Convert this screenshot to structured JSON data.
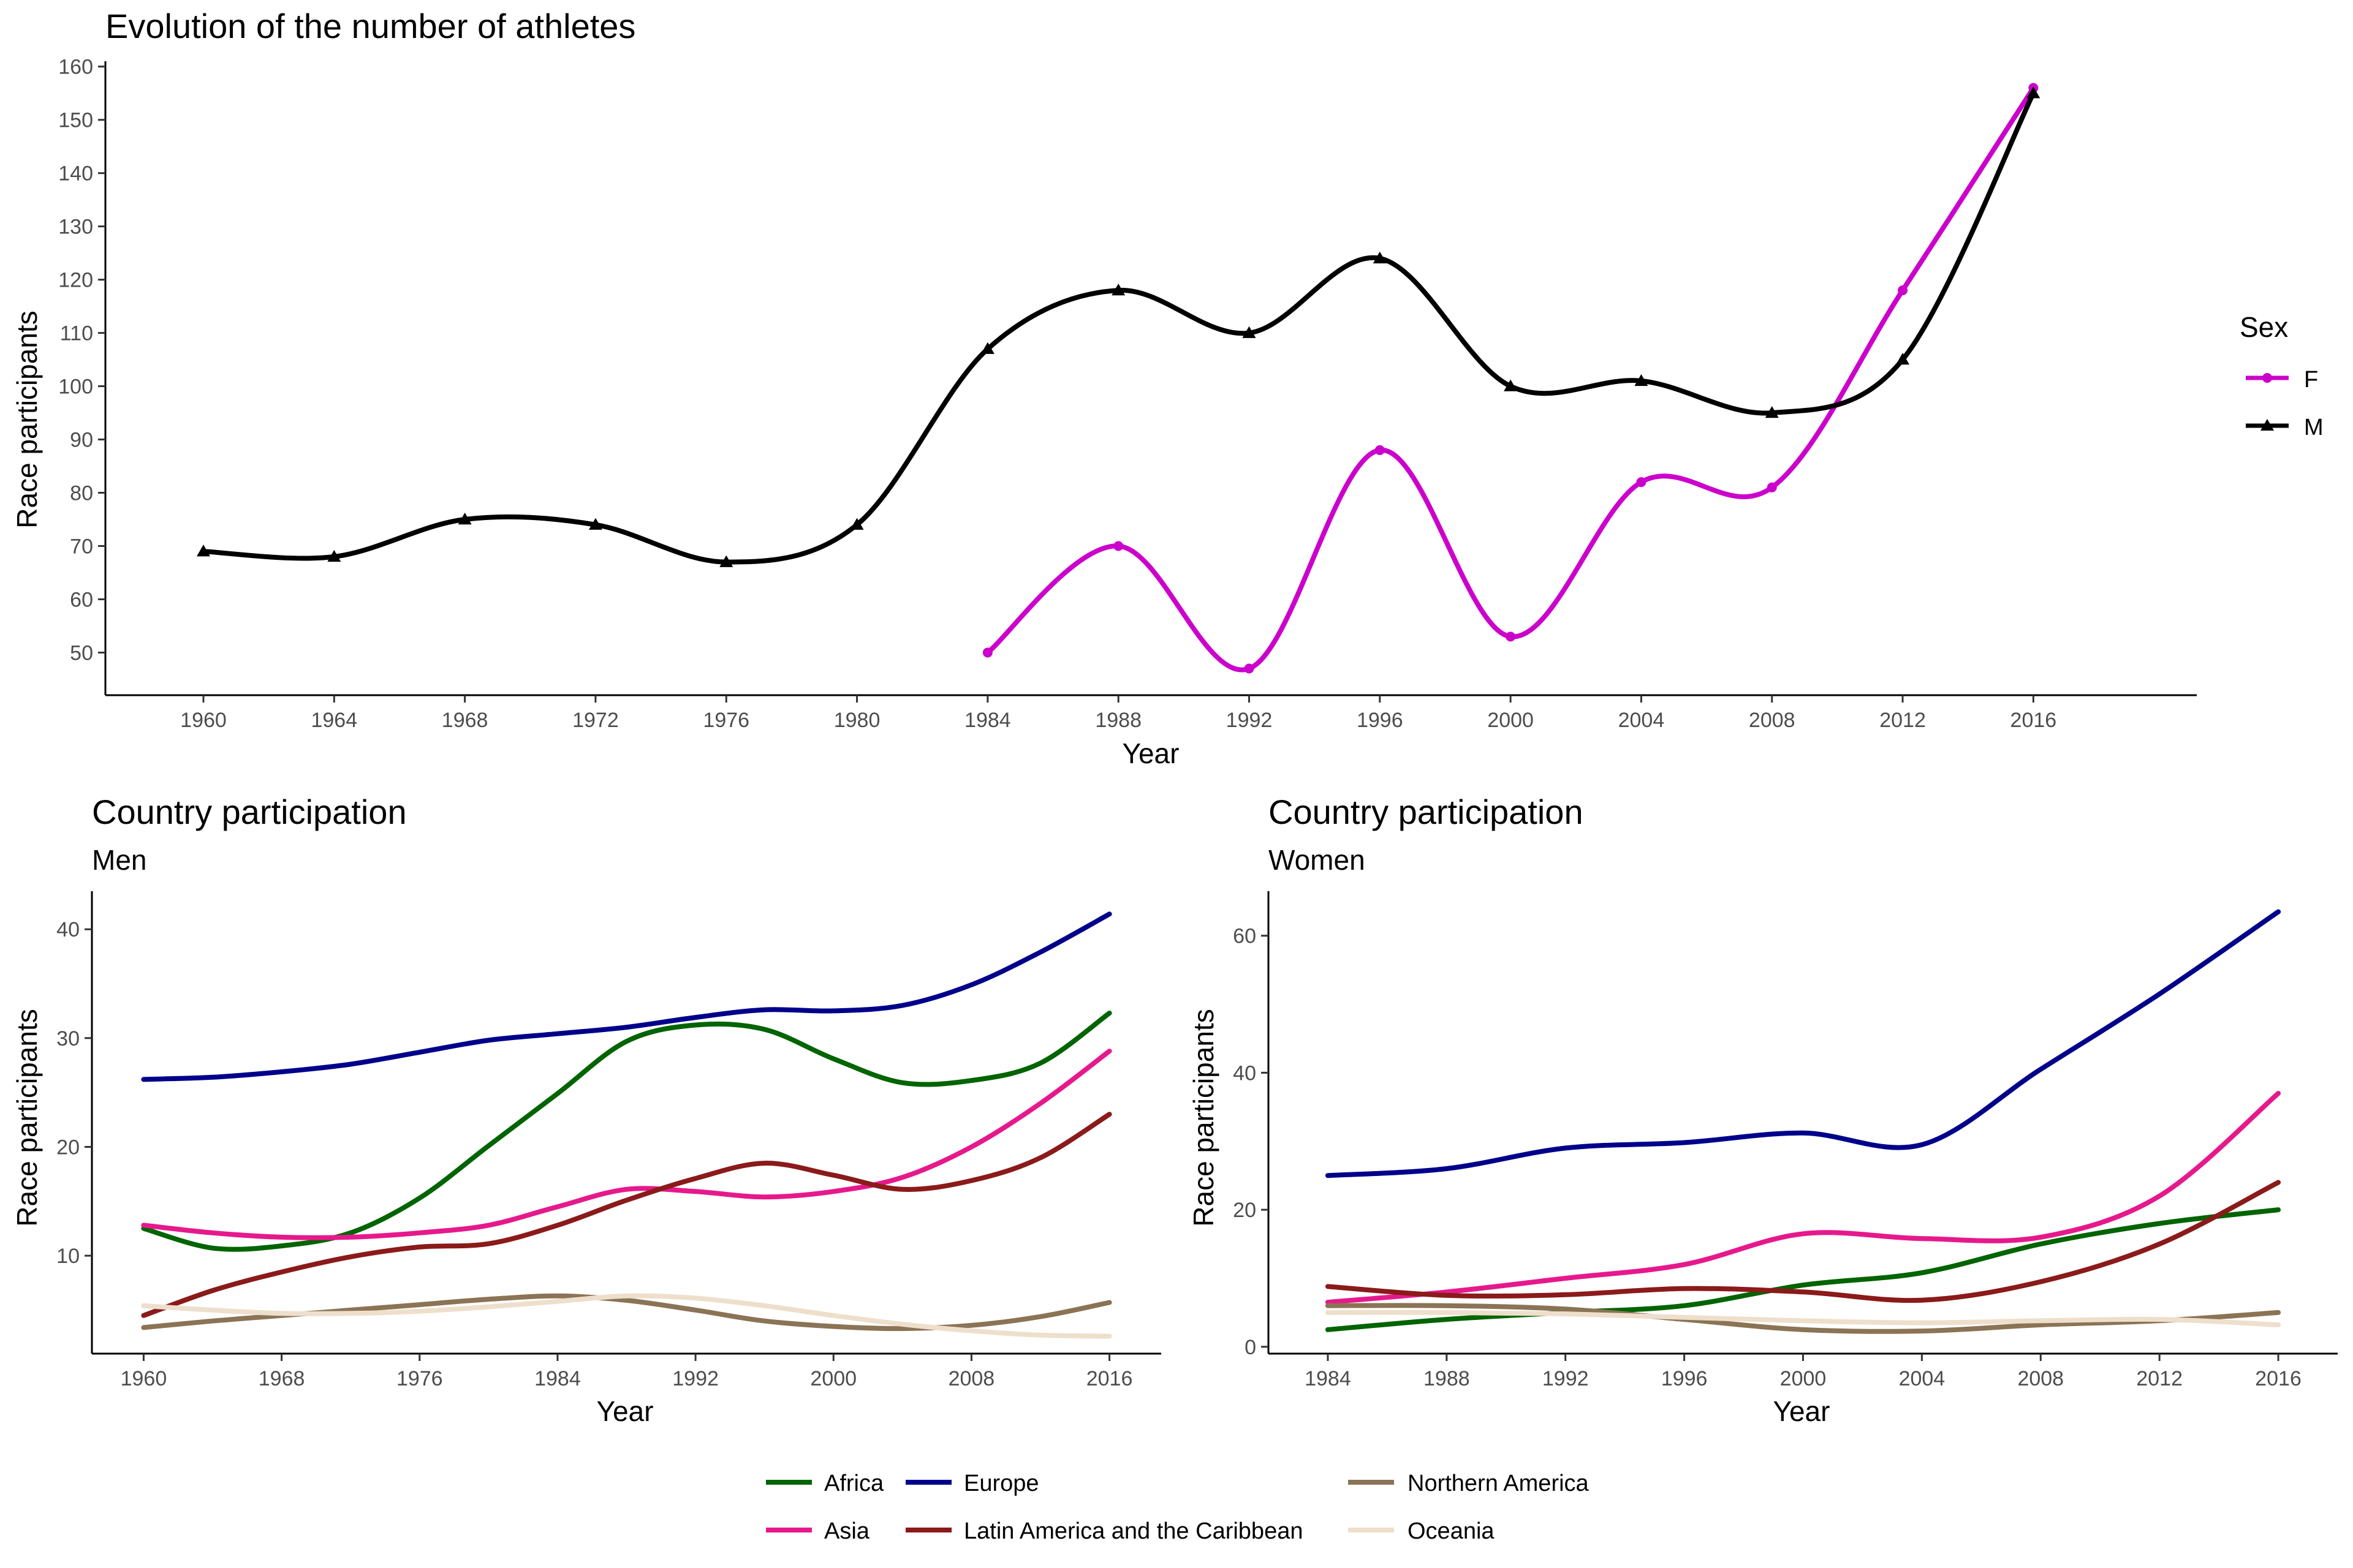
{
  "colors": {
    "F": "#CC00CC",
    "M": "#000000",
    "Africa": "#006400",
    "Europe": "#00008B",
    "Asia": "#E6198C",
    "Latin America and the Caribbean": "#8B1A1A",
    "Northern America": "#8B7355",
    "Oceania": "#EEDFCC"
  },
  "chart_data": [
    {
      "type": "line",
      "title": "Evolution of the number of athletes",
      "xlabel": "Year",
      "ylabel": "Race participants",
      "xlim": [
        1957,
        2021
      ],
      "ylim": [
        42,
        161
      ],
      "xticks": [
        1960,
        1964,
        1968,
        1972,
        1976,
        1980,
        1984,
        1988,
        1992,
        1996,
        2000,
        2004,
        2008,
        2012,
        2016
      ],
      "yticks": [
        50,
        60,
        70,
        80,
        90,
        100,
        110,
        120,
        130,
        140,
        150,
        160
      ],
      "legend": {
        "title": "Sex",
        "position": "right"
      },
      "grid": false,
      "series": [
        {
          "name": "F",
          "marker": "circle",
          "x": [
            1984,
            1988,
            1992,
            1996,
            2000,
            2004,
            2008,
            2012,
            2016
          ],
          "y": [
            50,
            70,
            47,
            88,
            53,
            82,
            81,
            118,
            156
          ]
        },
        {
          "name": "M",
          "marker": "triangle",
          "x": [
            1960,
            1964,
            1968,
            1972,
            1976,
            1980,
            1984,
            1988,
            1992,
            1996,
            2000,
            2004,
            2008,
            2012,
            2016
          ],
          "y": [
            69,
            68,
            75,
            74,
            67,
            74,
            107,
            118,
            110,
            124,
            100,
            101,
            95,
            105,
            155
          ]
        }
      ]
    },
    {
      "type": "line",
      "title": "Country participation",
      "subtitle": "Men",
      "xlabel": "Year",
      "ylabel": "Race participants",
      "xlim": [
        1957,
        2019
      ],
      "ylim": [
        1,
        43.5
      ],
      "xticks": [
        1960,
        1968,
        1976,
        1984,
        1992,
        2000,
        2008,
        2016
      ],
      "yticks": [
        10,
        20,
        30,
        40
      ],
      "grid": false,
      "series": [
        {
          "name": "Africa",
          "x": [
            1960,
            1964,
            1968,
            1972,
            1976,
            1980,
            1984,
            1988,
            1992,
            1996,
            2000,
            2004,
            2008,
            2012,
            2016
          ],
          "y": [
            12.5,
            10.7,
            10.9,
            12.1,
            15.3,
            20.1,
            24.9,
            29.7,
            31.2,
            30.8,
            28.1,
            25.9,
            26.1,
            27.7,
            32.3
          ]
        },
        {
          "name": "Europe",
          "x": [
            1960,
            1964,
            1968,
            1972,
            1976,
            1980,
            1984,
            1988,
            1992,
            1996,
            2000,
            2004,
            2008,
            2012,
            2016
          ],
          "y": [
            26.2,
            26.4,
            26.9,
            27.6,
            28.7,
            29.8,
            30.4,
            31.0,
            31.9,
            32.6,
            32.5,
            33.0,
            34.9,
            37.9,
            41.4
          ]
        },
        {
          "name": "Asia",
          "x": [
            1960,
            1964,
            1968,
            1972,
            1976,
            1980,
            1984,
            1988,
            1992,
            1996,
            2000,
            2004,
            2008,
            2012,
            2016
          ],
          "y": [
            12.8,
            12.1,
            11.7,
            11.7,
            12.1,
            12.8,
            14.5,
            16.1,
            15.9,
            15.4,
            15.9,
            17.2,
            20.0,
            24.0,
            28.8
          ]
        },
        {
          "name": "Latin America and the Caribbean",
          "x": [
            1960,
            1964,
            1968,
            1972,
            1976,
            1980,
            1984,
            1988,
            1992,
            1996,
            2000,
            2004,
            2008,
            2012,
            2016
          ],
          "y": [
            4.5,
            6.8,
            8.5,
            9.9,
            10.8,
            11.1,
            12.8,
            15.1,
            17.1,
            18.5,
            17.4,
            16.1,
            16.9,
            19.0,
            23.0
          ]
        },
        {
          "name": "Northern America",
          "x": [
            1960,
            1964,
            1968,
            1972,
            1976,
            1980,
            1984,
            1988,
            1992,
            1996,
            2000,
            2004,
            2008,
            2012,
            2016
          ],
          "y": [
            3.4,
            4.0,
            4.5,
            5.0,
            5.5,
            6.0,
            6.3,
            5.9,
            5.0,
            4.0,
            3.5,
            3.3,
            3.6,
            4.4,
            5.7
          ]
        },
        {
          "name": "Oceania",
          "x": [
            1960,
            1964,
            1968,
            1972,
            1976,
            1980,
            1984,
            1988,
            1992,
            1996,
            2000,
            2004,
            2008,
            2012,
            2016
          ],
          "y": [
            5.4,
            5.0,
            4.7,
            4.7,
            4.9,
            5.3,
            5.8,
            6.3,
            6.1,
            5.4,
            4.5,
            3.7,
            3.1,
            2.7,
            2.6
          ]
        }
      ]
    },
    {
      "type": "line",
      "title": "Country participation",
      "subtitle": "Women",
      "xlabel": "Year",
      "ylabel": "Race participants",
      "xlim": [
        1982,
        2018
      ],
      "ylim": [
        -1,
        66.5
      ],
      "xticks": [
        1984,
        1988,
        1992,
        1996,
        2000,
        2004,
        2008,
        2012,
        2016
      ],
      "yticks": [
        0,
        20,
        40,
        60
      ],
      "grid": false,
      "series": [
        {
          "name": "Africa",
          "x": [
            1984,
            1988,
            1992,
            1996,
            2000,
            2004,
            2008,
            2012,
            2016
          ],
          "y": [
            2.5,
            4.0,
            5.0,
            6.0,
            9.0,
            10.8,
            15.0,
            18.0,
            20.0
          ]
        },
        {
          "name": "Europe",
          "x": [
            1984,
            1988,
            1992,
            1996,
            2000,
            2004,
            2008,
            2012,
            2016
          ],
          "y": [
            25.0,
            26.0,
            29.0,
            29.8,
            31.2,
            29.5,
            40.5,
            51.5,
            63.5
          ]
        },
        {
          "name": "Asia",
          "x": [
            1984,
            1988,
            1992,
            1996,
            2000,
            2004,
            2008,
            2012,
            2016
          ],
          "y": [
            6.5,
            8.0,
            10.0,
            12.0,
            16.5,
            15.8,
            16.0,
            22.0,
            37.0
          ]
        },
        {
          "name": "Latin America and the Caribbean",
          "x": [
            1984,
            1988,
            1992,
            1996,
            2000,
            2004,
            2008,
            2012,
            2016
          ],
          "y": [
            8.8,
            7.5,
            7.6,
            8.5,
            8.0,
            6.8,
            9.5,
            15.0,
            24.0
          ]
        },
        {
          "name": "Northern America",
          "x": [
            1984,
            1988,
            1992,
            1996,
            2000,
            2004,
            2008,
            2012,
            2016
          ],
          "y": [
            6.0,
            6.0,
            5.5,
            4.0,
            2.5,
            2.3,
            3.2,
            3.8,
            5.0
          ]
        },
        {
          "name": "Oceania",
          "x": [
            1984,
            1988,
            1992,
            1996,
            2000,
            2004,
            2008,
            2012,
            2016
          ],
          "y": [
            5.0,
            5.0,
            4.8,
            4.3,
            3.8,
            3.5,
            3.8,
            4.0,
            3.2
          ]
        }
      ]
    }
  ],
  "bottom_legend": {
    "entries": [
      "Africa",
      "Asia",
      "Europe",
      "Latin America and the Caribbean",
      "Northern America",
      "Oceania"
    ]
  }
}
